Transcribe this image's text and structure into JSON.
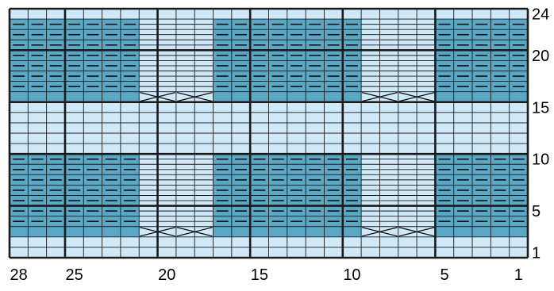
{
  "colors": {
    "light": "#cfe9f8",
    "dark": "#5ba8c6",
    "grid": "#1b1b1b",
    "symbol": "#111111"
  },
  "chart_data": {
    "type": "knitting-chart",
    "columns": 28,
    "rows": 24,
    "dark_row_bands": [
      [
        3,
        10
      ],
      [
        16,
        23
      ]
    ],
    "rib_column_blocks": [
      [
        6,
        9
      ],
      [
        18,
        21
      ]
    ],
    "cable_cross_rows": [
      3,
      16
    ],
    "purl_rows": [
      [
        4,
        10
      ],
      [
        17,
        23
      ]
    ],
    "x_labels": [
      {
        "col": 28,
        "text": "28"
      },
      {
        "col": 25,
        "text": "25"
      },
      {
        "col": 20,
        "text": "20"
      },
      {
        "col": 15,
        "text": "15"
      },
      {
        "col": 10,
        "text": "10"
      },
      {
        "col": 5,
        "text": "5"
      },
      {
        "col": 1,
        "text": "1"
      }
    ],
    "y_labels": [
      {
        "row": 24,
        "text": "24"
      },
      {
        "row": 20,
        "text": "20"
      },
      {
        "row": 15,
        "text": "15"
      },
      {
        "row": 10,
        "text": "10"
      },
      {
        "row": 5,
        "text": "5"
      },
      {
        "row": 1,
        "text": "1"
      }
    ]
  }
}
